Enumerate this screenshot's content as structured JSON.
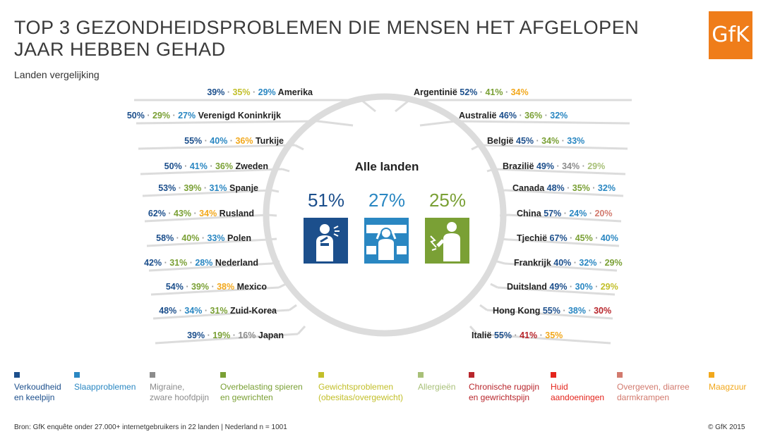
{
  "header": {
    "title": "TOP 3 GEZONDHEIDSPROBLEMEN DIE MENSEN HET AFGELOPEN JAAR HEBBEN GEHAD",
    "subtitle": "Landen vergelijking",
    "logo": "GfK"
  },
  "colors": {
    "verkoudheid": "#1c4f8c",
    "slaap": "#2a87c2",
    "migraine": "#8c8c8c",
    "overbelasting": "#7aa035",
    "gewicht": "#c2bf2a",
    "allergie": "#a8c078",
    "rugpijn": "#b8262c",
    "huid": "#e4241c",
    "overgeven": "#d27a6e",
    "maagzuur": "#f2a81c",
    "line": "#dcdcdc",
    "country": "#222222"
  },
  "chart_data": {
    "type": "table",
    "center": {
      "title": "Alle landen",
      "values": [
        {
          "value": "51%",
          "category": "verkoudheid",
          "icon": "cold-icon"
        },
        {
          "value": "27%",
          "category": "slaap",
          "icon": "sleep-icon"
        },
        {
          "value": "25%",
          "category": "overbelasting",
          "icon": "strain-icon"
        }
      ]
    },
    "left": [
      {
        "country": "Amerika",
        "values": [
          {
            "v": "39%",
            "c": "verkoudheid"
          },
          {
            "v": "35%",
            "c": "gewicht"
          },
          {
            "v": "29%",
            "c": "slaap"
          }
        ]
      },
      {
        "country": "Verenigd Koninkrijk",
        "values": [
          {
            "v": "50%",
            "c": "verkoudheid"
          },
          {
            "v": "29%",
            "c": "overbelasting"
          },
          {
            "v": "27%",
            "c": "slaap"
          }
        ]
      },
      {
        "country": "Turkije",
        "values": [
          {
            "v": "55%",
            "c": "verkoudheid"
          },
          {
            "v": "40%",
            "c": "slaap"
          },
          {
            "v": "36%",
            "c": "maagzuur"
          }
        ]
      },
      {
        "country": "Zweden",
        "values": [
          {
            "v": "50%",
            "c": "verkoudheid"
          },
          {
            "v": "41%",
            "c": "slaap"
          },
          {
            "v": "36%",
            "c": "overbelasting"
          }
        ]
      },
      {
        "country": "Spanje",
        "values": [
          {
            "v": "53%",
            "c": "verkoudheid"
          },
          {
            "v": "39%",
            "c": "overbelasting"
          },
          {
            "v": "31%",
            "c": "slaap"
          }
        ]
      },
      {
        "country": "Rusland",
        "values": [
          {
            "v": "62%",
            "c": "verkoudheid"
          },
          {
            "v": "43%",
            "c": "overbelasting"
          },
          {
            "v": "34%",
            "c": "maagzuur"
          }
        ]
      },
      {
        "country": "Polen",
        "values": [
          {
            "v": "58%",
            "c": "verkoudheid"
          },
          {
            "v": "40%",
            "c": "overbelasting"
          },
          {
            "v": "33%",
            "c": "slaap"
          }
        ]
      },
      {
        "country": "Nederland",
        "values": [
          {
            "v": "42%",
            "c": "verkoudheid"
          },
          {
            "v": "31%",
            "c": "overbelasting"
          },
          {
            "v": "28%",
            "c": "slaap"
          }
        ]
      },
      {
        "country": "Mexico",
        "values": [
          {
            "v": "54%",
            "c": "verkoudheid"
          },
          {
            "v": "39%",
            "c": "overbelasting"
          },
          {
            "v": "38%",
            "c": "maagzuur"
          }
        ]
      },
      {
        "country": "Zuid-Korea",
        "values": [
          {
            "v": "48%",
            "c": "verkoudheid"
          },
          {
            "v": "34%",
            "c": "slaap"
          },
          {
            "v": "31%",
            "c": "overbelasting"
          }
        ]
      },
      {
        "country": "Japan",
        "values": [
          {
            "v": "39%",
            "c": "verkoudheid"
          },
          {
            "v": "19%",
            "c": "overbelasting"
          },
          {
            "v": "16%",
            "c": "migraine"
          }
        ]
      }
    ],
    "right": [
      {
        "country": "Argentinië",
        "values": [
          {
            "v": "52%",
            "c": "verkoudheid"
          },
          {
            "v": "41%",
            "c": "overbelasting"
          },
          {
            "v": "34%",
            "c": "maagzuur"
          }
        ]
      },
      {
        "country": "Australië",
        "values": [
          {
            "v": "46%",
            "c": "verkoudheid"
          },
          {
            "v": "36%",
            "c": "overbelasting"
          },
          {
            "v": "32%",
            "c": "slaap"
          }
        ]
      },
      {
        "country": "België",
        "values": [
          {
            "v": "45%",
            "c": "verkoudheid"
          },
          {
            "v": "34%",
            "c": "overbelasting"
          },
          {
            "v": "33%",
            "c": "slaap"
          }
        ]
      },
      {
        "country": "Brazilië",
        "values": [
          {
            "v": "49%",
            "c": "verkoudheid"
          },
          {
            "v": "34%",
            "c": "migraine"
          },
          {
            "v": "29%",
            "c": "allergie"
          }
        ]
      },
      {
        "country": "Canada",
        "values": [
          {
            "v": "48%",
            "c": "verkoudheid"
          },
          {
            "v": "35%",
            "c": "overbelasting"
          },
          {
            "v": "32%",
            "c": "slaap"
          }
        ]
      },
      {
        "country": "China",
        "values": [
          {
            "v": "57%",
            "c": "verkoudheid"
          },
          {
            "v": "24%",
            "c": "slaap"
          },
          {
            "v": "20%",
            "c": "overgeven"
          }
        ]
      },
      {
        "country": "Tjechië",
        "values": [
          {
            "v": "67%",
            "c": "verkoudheid"
          },
          {
            "v": "45%",
            "c": "overbelasting"
          },
          {
            "v": "40%",
            "c": "slaap"
          }
        ]
      },
      {
        "country": "Frankrijk",
        "values": [
          {
            "v": "40%",
            "c": "verkoudheid"
          },
          {
            "v": "32%",
            "c": "slaap"
          },
          {
            "v": "29%",
            "c": "overbelasting"
          }
        ]
      },
      {
        "country": "Duitsland",
        "values": [
          {
            "v": "49%",
            "c": "verkoudheid"
          },
          {
            "v": "30%",
            "c": "slaap"
          },
          {
            "v": "29%",
            "c": "gewicht"
          }
        ]
      },
      {
        "country": "Hong Kong",
        "values": [
          {
            "v": "55%",
            "c": "verkoudheid"
          },
          {
            "v": "38%",
            "c": "slaap"
          },
          {
            "v": "30%",
            "c": "rugpijn"
          }
        ]
      },
      {
        "country": "Italië",
        "values": [
          {
            "v": "55%",
            "c": "verkoudheid"
          },
          {
            "v": "41%",
            "c": "rugpijn"
          },
          {
            "v": "35%",
            "c": "maagzuur"
          }
        ]
      }
    ],
    "legend": [
      {
        "key": "verkoudheid",
        "lines": [
          "Verkoudheid",
          "en keelpijn"
        ]
      },
      {
        "key": "slaap",
        "lines": [
          "Slaapproblemen"
        ]
      },
      {
        "key": "migraine",
        "lines": [
          "Migraine,",
          "zware hoofdpijn"
        ]
      },
      {
        "key": "overbelasting",
        "lines": [
          "Overbelasting spieren",
          "en gewrichten"
        ]
      },
      {
        "key": "gewicht",
        "lines": [
          "Gewichtsproblemen",
          "(obesitas/overgewicht)"
        ]
      },
      {
        "key": "allergie",
        "lines": [
          "Allergieën"
        ]
      },
      {
        "key": "rugpijn",
        "lines": [
          "Chronische rugpijn",
          "en gewrichtspijn"
        ]
      },
      {
        "key": "huid",
        "lines": [
          "Huid",
          "aandoeningen"
        ]
      },
      {
        "key": "overgeven",
        "lines": [
          "Overgeven, diarree",
          "darmkrampen"
        ]
      },
      {
        "key": "maagzuur",
        "lines": [
          "Maagzuur"
        ]
      }
    ]
  },
  "footer": {
    "source": "Bron: GfK enquête onder 27.000+ internetgebruikers in 22 landen | Nederland n = 1001",
    "copyright": "© GfK 2015"
  }
}
